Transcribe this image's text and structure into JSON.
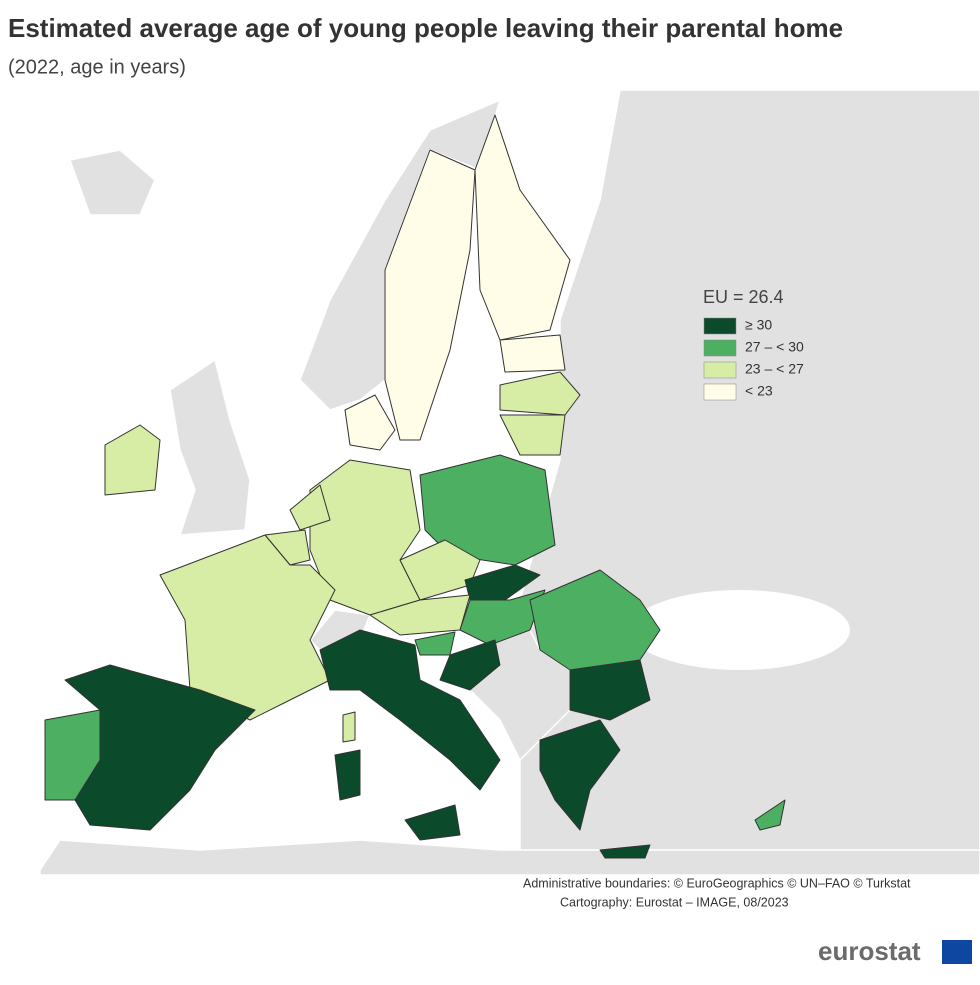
{
  "header": {
    "title": "Estimated average age of young people leaving their parental home",
    "subtitle": "(2022, age in years)"
  },
  "legend": {
    "title": "EU = 26.4",
    "items": [
      {
        "label": "≥ 30",
        "color": "#0b4a2b"
      },
      {
        "label": "27 – < 30",
        "color": "#4caf62"
      },
      {
        "label": "23 – < 27",
        "color": "#d7eca4"
      },
      {
        "label": "< 23",
        "color": "#fffde8"
      }
    ]
  },
  "credits": [
    "Administrative boundaries: © EuroGeographics © UN–FAO © Turkstat",
    "Cartography: Eurostat – IMAGE, 08/2023"
  ],
  "logo": "eurostat"
}
